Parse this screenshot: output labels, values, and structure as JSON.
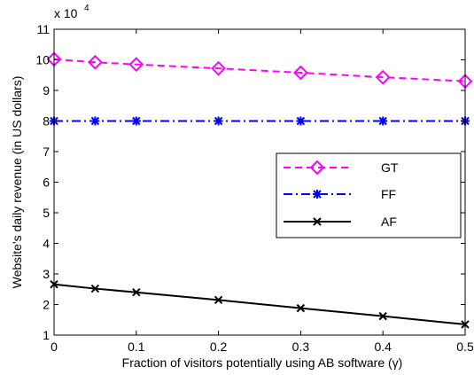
{
  "chart_data": {
    "type": "line",
    "xlabel": "Fraction of visitors potentially using AB software (γ)",
    "ylabel": "Website's daily revenue (in US dollars)",
    "y_multiplier_label": "x 10",
    "y_multiplier_exponent": "4",
    "xlim": [
      0,
      0.5
    ],
    "ylim": [
      1,
      11
    ],
    "x_ticks": [
      0,
      0.1,
      0.2,
      0.3,
      0.4,
      0.5
    ],
    "x_tick_labels": [
      "0",
      "0.1",
      "0.2",
      "0.3",
      "0.4",
      "0.5"
    ],
    "y_ticks": [
      1,
      2,
      3,
      4,
      5,
      6,
      7,
      8,
      9,
      10,
      11
    ],
    "y_tick_labels": [
      "1",
      "2",
      "3",
      "4",
      "5",
      "6",
      "7",
      "8",
      "9",
      "10",
      "11"
    ],
    "grid": false,
    "legend_position": "center-right",
    "x": [
      0,
      0.05,
      0.1,
      0.2,
      0.3,
      0.4,
      0.5
    ],
    "series": [
      {
        "name": "GT",
        "color": "#ff00ff",
        "line_style": "dashed",
        "marker": "diamond",
        "values": [
          10.02,
          9.92,
          9.85,
          9.72,
          9.58,
          9.43,
          9.3
        ]
      },
      {
        "name": "FF",
        "color": "#0000ff",
        "line_style": "dash-dot",
        "marker": "asterisk",
        "values": [
          8.0,
          8.0,
          8.0,
          8.0,
          8.0,
          8.0,
          8.0
        ]
      },
      {
        "name": "AF",
        "color": "#000000",
        "line_style": "solid",
        "marker": "x",
        "values": [
          2.66,
          2.52,
          2.4,
          2.15,
          1.88,
          1.62,
          1.35
        ]
      }
    ]
  }
}
